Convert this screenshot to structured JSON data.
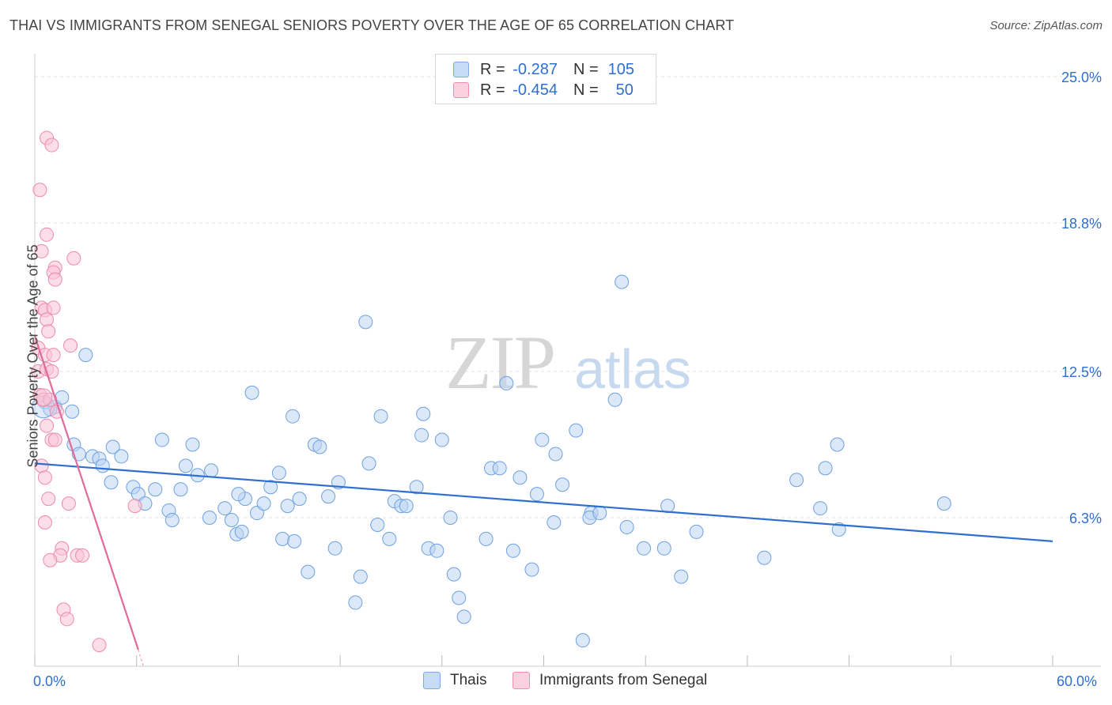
{
  "title": "THAI VS IMMIGRANTS FROM SENEGAL SENIORS POVERTY OVER THE AGE OF 65 CORRELATION CHART",
  "source": "Source: ZipAtlas.com",
  "watermark": {
    "zip": "ZIP",
    "atlas": "atlas"
  },
  "legend": [
    {
      "r_label": "R =",
      "r_value": "-0.287",
      "n_label": "N =",
      "n_value": "105",
      "color": "#a8c8ef"
    },
    {
      "r_label": "R =",
      "r_value": "-0.454",
      "n_label": "N =",
      "n_value": "50",
      "color": "#f5b3c8"
    }
  ],
  "bottom_legend": [
    {
      "label": "Thais",
      "color": "#a8c8ef"
    },
    {
      "label": "Immigrants from Senegal",
      "color": "#f5b3c8"
    }
  ],
  "chart_data": {
    "type": "scatter",
    "title": "THAI VS IMMIGRANTS FROM SENEGAL SENIORS POVERTY OVER THE AGE OF 65 CORRELATION CHART",
    "xlabel": "",
    "ylabel": "Seniors Poverty Over the Age of 65",
    "xlim": [
      0,
      60
    ],
    "ylim": [
      0,
      25
    ],
    "x_tick_labels": [
      "0.0%",
      "60.0%"
    ],
    "y_ticks": [
      6.3,
      12.5,
      18.8,
      25.0
    ],
    "y_tick_labels": [
      "6.3%",
      "12.5%",
      "18.8%",
      "25.0%"
    ],
    "series": [
      {
        "name": "Thais",
        "color": "#7aaae6",
        "trend": {
          "x0": 0,
          "y0": 8.6,
          "x1": 60,
          "y1": 5.3,
          "color": "#2f6fd0"
        },
        "points": [
          [
            0.6,
            11.2
          ],
          [
            1.2,
            11.0
          ],
          [
            1.6,
            11.4
          ],
          [
            2.2,
            10.8
          ],
          [
            0.9,
            10.9
          ],
          [
            3.0,
            13.2
          ],
          [
            2.3,
            9.4
          ],
          [
            2.6,
            9.0
          ],
          [
            3.4,
            8.9
          ],
          [
            4.6,
            9.3
          ],
          [
            3.8,
            8.8
          ],
          [
            4.0,
            8.5
          ],
          [
            5.1,
            8.9
          ],
          [
            4.5,
            7.8
          ],
          [
            5.8,
            7.6
          ],
          [
            6.1,
            7.3
          ],
          [
            7.5,
            9.6
          ],
          [
            7.1,
            7.5
          ],
          [
            6.5,
            6.9
          ],
          [
            7.9,
            6.6
          ],
          [
            8.1,
            6.2
          ],
          [
            8.6,
            7.5
          ],
          [
            8.9,
            8.5
          ],
          [
            9.3,
            9.4
          ],
          [
            9.6,
            8.1
          ],
          [
            10.4,
            8.3
          ],
          [
            10.3,
            6.3
          ],
          [
            11.2,
            6.7
          ],
          [
            11.6,
            6.2
          ],
          [
            11.9,
            5.6
          ],
          [
            12.2,
            5.7
          ],
          [
            12.4,
            7.1
          ],
          [
            12.0,
            7.3
          ],
          [
            12.8,
            11.6
          ],
          [
            13.1,
            6.5
          ],
          [
            13.5,
            6.9
          ],
          [
            13.9,
            7.6
          ],
          [
            14.4,
            8.2
          ],
          [
            14.6,
            5.4
          ],
          [
            14.9,
            6.8
          ],
          [
            15.3,
            5.3
          ],
          [
            15.2,
            10.6
          ],
          [
            15.6,
            7.1
          ],
          [
            16.1,
            4.0
          ],
          [
            16.5,
            9.4
          ],
          [
            16.8,
            9.3
          ],
          [
            17.3,
            7.2
          ],
          [
            17.7,
            5.0
          ],
          [
            17.9,
            7.8
          ],
          [
            18.9,
            2.7
          ],
          [
            19.2,
            3.8
          ],
          [
            19.5,
            14.6
          ],
          [
            19.7,
            8.6
          ],
          [
            20.2,
            6.0
          ],
          [
            20.4,
            10.6
          ],
          [
            20.9,
            5.4
          ],
          [
            21.2,
            7.0
          ],
          [
            21.6,
            6.8
          ],
          [
            21.9,
            6.8
          ],
          [
            22.5,
            7.6
          ],
          [
            22.8,
            9.8
          ],
          [
            22.9,
            10.7
          ],
          [
            23.2,
            5.0
          ],
          [
            23.7,
            4.9
          ],
          [
            24.0,
            9.6
          ],
          [
            24.5,
            6.3
          ],
          [
            24.7,
            3.9
          ],
          [
            25.0,
            2.9
          ],
          [
            25.3,
            2.1
          ],
          [
            26.9,
            8.4
          ],
          [
            26.6,
            5.4
          ],
          [
            27.4,
            8.4
          ],
          [
            27.8,
            12.0
          ],
          [
            28.2,
            4.9
          ],
          [
            28.6,
            8.0
          ],
          [
            29.3,
            4.1
          ],
          [
            29.6,
            7.3
          ],
          [
            29.9,
            9.6
          ],
          [
            30.6,
            6.1
          ],
          [
            30.7,
            9.0
          ],
          [
            31.1,
            7.7
          ],
          [
            31.9,
            10.0
          ],
          [
            32.3,
            1.1
          ],
          [
            32.8,
            6.5
          ],
          [
            32.7,
            6.3
          ],
          [
            33.3,
            6.5
          ],
          [
            34.2,
            11.3
          ],
          [
            34.6,
            16.3
          ],
          [
            34.9,
            5.9
          ],
          [
            35.9,
            5.0
          ],
          [
            37.1,
            5.0
          ],
          [
            37.3,
            6.8
          ],
          [
            38.1,
            3.8
          ],
          [
            39.0,
            5.7
          ],
          [
            43.0,
            4.6
          ],
          [
            44.9,
            7.9
          ],
          [
            46.3,
            6.7
          ],
          [
            46.6,
            8.4
          ],
          [
            47.3,
            9.4
          ],
          [
            47.4,
            5.8
          ],
          [
            53.6,
            6.9
          ]
        ]
      },
      {
        "name": "Immigrants from Senegal",
        "color": "#f28db0",
        "trend": {
          "x0": 0,
          "y0": 14.0,
          "x1": 6.1,
          "y1": 0.7,
          "color": "#e06a98"
        },
        "points": [
          [
            0.3,
            20.2
          ],
          [
            0.7,
            22.4
          ],
          [
            1.0,
            22.1
          ],
          [
            0.7,
            18.3
          ],
          [
            0.4,
            17.6
          ],
          [
            2.3,
            17.3
          ],
          [
            1.2,
            16.9
          ],
          [
            1.1,
            16.7
          ],
          [
            1.2,
            16.4
          ],
          [
            0.4,
            15.2
          ],
          [
            0.6,
            15.1
          ],
          [
            1.1,
            15.2
          ],
          [
            0.7,
            14.7
          ],
          [
            0.8,
            14.2
          ],
          [
            2.1,
            13.6
          ],
          [
            0.2,
            13.5
          ],
          [
            0.6,
            13.2
          ],
          [
            1.1,
            13.2
          ],
          [
            0.2,
            12.5
          ],
          [
            0.7,
            12.6
          ],
          [
            1.0,
            12.5
          ],
          [
            0.3,
            11.5
          ],
          [
            0.5,
            11.3
          ],
          [
            0.9,
            11.3
          ],
          [
            1.3,
            10.8
          ],
          [
            0.7,
            10.2
          ],
          [
            1.0,
            9.6
          ],
          [
            1.2,
            9.6
          ],
          [
            0.4,
            8.5
          ],
          [
            0.6,
            8.0
          ],
          [
            0.8,
            7.1
          ],
          [
            2.0,
            6.9
          ],
          [
            0.6,
            6.1
          ],
          [
            5.9,
            6.8
          ],
          [
            1.6,
            5.0
          ],
          [
            1.5,
            4.7
          ],
          [
            0.9,
            4.5
          ],
          [
            2.5,
            4.7
          ],
          [
            2.8,
            4.7
          ],
          [
            1.7,
            2.4
          ],
          [
            1.9,
            2.0
          ],
          [
            3.8,
            0.9
          ]
        ]
      }
    ]
  }
}
